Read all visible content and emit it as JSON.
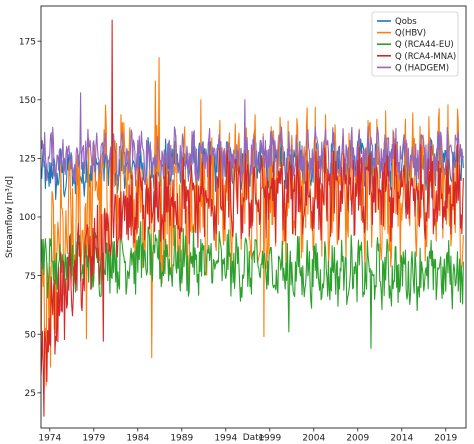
{
  "chart_data": {
    "type": "line",
    "xlabel": "Date",
    "ylabel": "Streamflow [m³/d]",
    "x_range": [
      1973.0,
      2021.3
    ],
    "ylim": [
      10,
      190
    ],
    "x_ticks": [
      {
        "value": 1974,
        "label": "1974"
      },
      {
        "value": 1979,
        "label": "1979"
      },
      {
        "value": 1984,
        "label": "1984"
      },
      {
        "value": 1989,
        "label": "1989"
      },
      {
        "value": 1994,
        "label": "1994"
      },
      {
        "value": 1999,
        "label": "1999"
      },
      {
        "value": 2004,
        "label": "2004"
      },
      {
        "value": 2009,
        "label": "2009"
      },
      {
        "value": 2014,
        "label": "2014"
      },
      {
        "value": 2019,
        "label": "2019"
      }
    ],
    "y_ticks": [
      {
        "value": 25,
        "label": "25"
      },
      {
        "value": 50,
        "label": "50"
      },
      {
        "value": 75,
        "label": "75"
      },
      {
        "value": 100,
        "label": "100"
      },
      {
        "value": 125,
        "label": "125"
      },
      {
        "value": 150,
        "label": "150"
      },
      {
        "value": 175,
        "label": "175"
      }
    ],
    "grid": false,
    "legend_position": "top-right",
    "draw_order": [
      0,
      1,
      2,
      4,
      3
    ],
    "series": [
      {
        "name": "Qobs",
        "color": "#1f77b4",
        "x": [
          1973.0,
          1975.0,
          1977.0,
          1979.0,
          1981.0,
          1983.0,
          1985.0,
          1987.0,
          1989.0,
          1991.0,
          1993.0,
          1995.0,
          1997.0,
          1999.0,
          2001.0,
          2003.0,
          2005.0,
          2007.0,
          2009.0,
          2011.0,
          2013.0,
          2015.0,
          2017.0,
          2019.0,
          2021.0
        ],
        "mean": [
          118,
          118,
          119,
          120,
          121,
          121,
          122,
          122,
          123,
          123,
          123,
          124,
          124,
          124,
          124,
          124,
          124,
          124,
          124,
          124,
          124,
          124,
          124,
          124,
          124
        ],
        "spread": 9
      },
      {
        "name": "Q(HBV)",
        "color": "#ff7f0e",
        "x": [
          1973.0,
          1975.0,
          1977.0,
          1979.0,
          1981.0,
          1983.0,
          1985.0,
          1987.0,
          1989.0,
          1991.0,
          1993.0,
          1995.0,
          1997.0,
          1999.0,
          2001.0,
          2003.0,
          2005.0,
          2007.0,
          2009.0,
          2011.0,
          2013.0,
          2015.0,
          2017.0,
          2019.0,
          2021.0
        ],
        "mean": [
          55,
          85,
          95,
          110,
          115,
          112,
          108,
          105,
          108,
          110,
          110,
          112,
          112,
          110,
          112,
          112,
          112,
          112,
          113,
          113,
          113,
          113,
          113,
          112,
          112
        ],
        "spread": 26,
        "extremes": [
          {
            "x": 1973.6,
            "y": 28
          },
          {
            "x": 1974.1,
            "y": 36
          },
          {
            "x": 1978.2,
            "y": 48
          },
          {
            "x": 1985.6,
            "y": 40
          },
          {
            "x": 1986.4,
            "y": 168
          },
          {
            "x": 1986.0,
            "y": 158
          },
          {
            "x": 1998.3,
            "y": 49
          },
          {
            "x": 1991.2,
            "y": 150
          }
        ]
      },
      {
        "name": "Q (RCA44-EU)",
        "color": "#2ca02c",
        "x": [
          1973.0,
          1975.0,
          1977.0,
          1979.0,
          1981.0,
          1983.0,
          1985.0,
          1987.0,
          1989.0,
          1991.0,
          1993.0,
          1995.0,
          1997.0,
          1999.0,
          2001.0,
          2003.0,
          2005.0,
          2007.0,
          2009.0,
          2011.0,
          2013.0,
          2015.0,
          2017.0,
          2019.0,
          2021.0
        ],
        "mean": [
          82,
          80,
          80,
          80,
          82,
          82,
          82,
          82,
          81,
          80,
          80,
          79,
          79,
          78,
          78,
          77,
          77,
          77,
          77,
          76,
          76,
          76,
          76,
          76,
          76
        ],
        "spread": 11,
        "extremes": [
          {
            "x": 2010.5,
            "y": 44
          },
          {
            "x": 2001.2,
            "y": 51
          },
          {
            "x": 1984.3,
            "y": 98
          }
        ]
      },
      {
        "name": "Q (RCA4-MNA)",
        "color": "#d62728",
        "x": [
          1973.0,
          1975.0,
          1977.0,
          1979.0,
          1981.0,
          1983.0,
          1985.0,
          1987.0,
          1989.0,
          1991.0,
          1993.0,
          1995.0,
          1997.0,
          1999.0,
          2001.0,
          2003.0,
          2005.0,
          2007.0,
          2009.0,
          2011.0,
          2013.0,
          2015.0,
          2017.0,
          2019.0,
          2021.0
        ],
        "mean": [
          40,
          65,
          75,
          85,
          95,
          100,
          103,
          105,
          106,
          107,
          108,
          108,
          109,
          109,
          109,
          109,
          110,
          110,
          110,
          110,
          110,
          110,
          111,
          111,
          111
        ],
        "spread": 15,
        "extremes": [
          {
            "x": 1973.3,
            "y": 15
          },
          {
            "x": 1981.1,
            "y": 184
          },
          {
            "x": 1980.1,
            "y": 47
          }
        ]
      },
      {
        "name": "Q  (HADGEM)",
        "color": "#9467bd",
        "x": [
          1973.0,
          1975.0,
          1977.0,
          1979.0,
          1981.0,
          1983.0,
          1985.0,
          1987.0,
          1989.0,
          1991.0,
          1993.0,
          1995.0,
          1997.0,
          1999.0,
          2001.0,
          2003.0,
          2005.0,
          2007.0,
          2009.0,
          2011.0,
          2013.0,
          2015.0,
          2017.0,
          2019.0,
          2021.0
        ],
        "mean": [
          126,
          126,
          126,
          126,
          126,
          126,
          126,
          126,
          126,
          126,
          126,
          126,
          126,
          126,
          126,
          126,
          126,
          126,
          126,
          126,
          126,
          126,
          126,
          126,
          126
        ],
        "spread": 9,
        "extremes": [
          {
            "x": 1977.5,
            "y": 153
          },
          {
            "x": 1996.2,
            "y": 150
          }
        ]
      }
    ]
  }
}
